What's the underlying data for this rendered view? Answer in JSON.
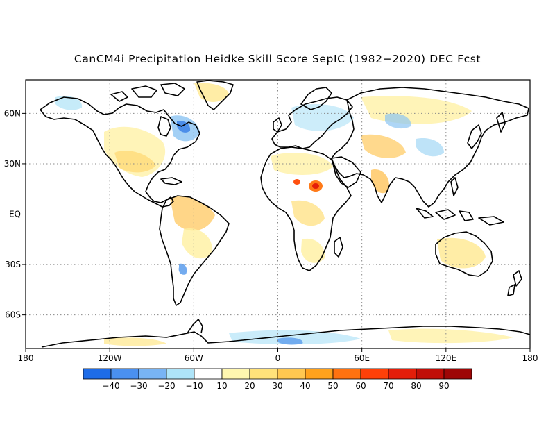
{
  "title": "CanCM4i Precipitation Heidke Skill Score SepIC (1982−2020) DEC Fcst",
  "map": {
    "lon_ticks": [
      {
        "lon": -180,
        "label": "180"
      },
      {
        "lon": -120,
        "label": "120W"
      },
      {
        "lon": -60,
        "label": "60W"
      },
      {
        "lon": 0,
        "label": "0"
      },
      {
        "lon": 60,
        "label": "60E"
      },
      {
        "lon": 120,
        "label": "120E"
      },
      {
        "lon": 180,
        "label": "180"
      }
    ],
    "lat_ticks": [
      {
        "lat": 60,
        "label": "60N"
      },
      {
        "lat": 30,
        "label": "30N"
      },
      {
        "lat": 0,
        "label": "EQ"
      },
      {
        "lat": -30,
        "label": "30S"
      },
      {
        "lat": -60,
        "label": "60S"
      }
    ],
    "lon_range": [
      -180,
      180
    ],
    "lat_range": [
      -80,
      80
    ],
    "grid": "dotted"
  },
  "colorbar": {
    "colors": [
      "#1e6ce8",
      "#4a90f0",
      "#78b4f4",
      "#aee4f8",
      "#ffffff",
      "#fff7b0",
      "#ffe27a",
      "#ffc850",
      "#ffa21c",
      "#ff7210",
      "#ff4008",
      "#e41e0a",
      "#c00e08",
      "#9e0606"
    ],
    "labels": [
      "−40",
      "−30",
      "−20",
      "−10",
      "10",
      "20",
      "30",
      "40",
      "50",
      "60",
      "70",
      "80",
      "90"
    ]
  },
  "features": [
    {
      "name": "sahel-hotspot",
      "lon": 23,
      "lat": 15,
      "value": 65
    },
    {
      "name": "sahel-hotspot-west",
      "lon": 12,
      "lat": 16,
      "value": 55
    }
  ]
}
